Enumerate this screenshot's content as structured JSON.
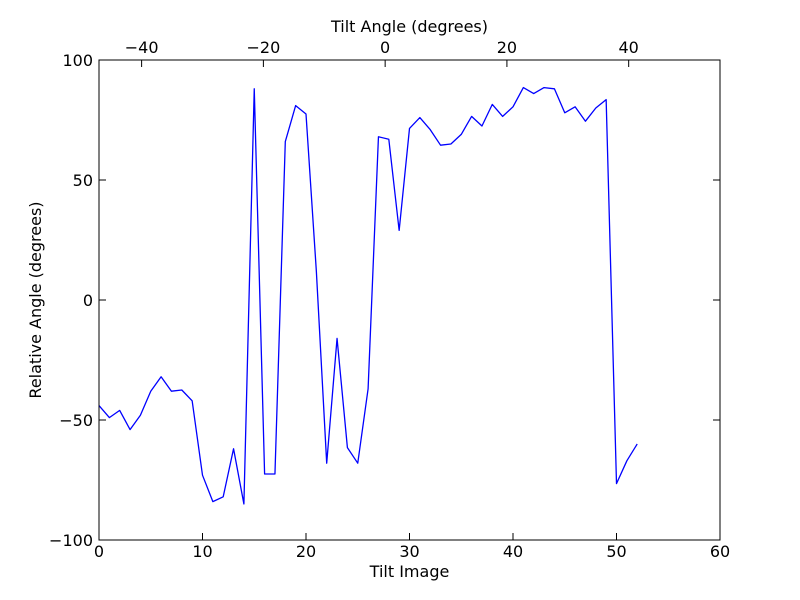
{
  "chart_data": {
    "type": "line",
    "title": "",
    "xlabel": "Tilt Image",
    "ylabel": "Relative Angle (degrees)",
    "top_xlabel": "Tilt Angle (degrees)",
    "xlim": [
      0,
      60
    ],
    "ylim": [
      -100,
      100
    ],
    "top_xlim": [
      -47,
      55
    ],
    "x_ticks": [
      0,
      10,
      20,
      30,
      40,
      50,
      60
    ],
    "y_ticks": [
      -100,
      -50,
      0,
      50,
      100
    ],
    "top_ticks": [
      -40,
      -20,
      0,
      20,
      40
    ],
    "x_tick_labels": [
      "0",
      "10",
      "20",
      "30",
      "40",
      "50",
      "60"
    ],
    "y_tick_labels": [
      "−100",
      "−50",
      "0",
      "50",
      "100"
    ],
    "top_tick_labels": [
      "−40",
      "−20",
      "0",
      "20",
      "40"
    ],
    "grid": false,
    "line_color": "#0000ff",
    "series": [
      {
        "x": [
          0,
          1,
          2,
          3,
          4,
          5,
          6,
          7,
          8,
          9,
          10,
          11,
          12,
          13,
          14,
          15,
          16,
          17,
          18,
          19,
          20,
          21,
          22,
          23,
          24,
          25,
          26,
          27,
          28,
          29,
          30,
          31,
          32,
          33,
          34,
          35,
          36,
          37,
          38,
          39,
          40,
          41,
          42,
          43,
          44,
          45,
          46,
          47,
          48,
          49,
          50,
          51,
          52
        ],
        "values": [
          -44,
          -49,
          -46,
          -54,
          -48,
          -38,
          -32,
          -38,
          -37.5,
          -42,
          -73,
          -84,
          -82,
          -62,
          -85,
          88,
          -72.5,
          -72.5,
          66,
          81,
          77.5,
          12,
          -68,
          -16,
          -61.5,
          -68,
          -37,
          68,
          67,
          29,
          71.5,
          76,
          71,
          64.5,
          65,
          69,
          76.5,
          72.5,
          81.5,
          76.5,
          80.5,
          88.5,
          86,
          88.5,
          88,
          78,
          80.5,
          74.5,
          80,
          83.5,
          -76.5,
          -67,
          -60
        ]
      }
    ]
  }
}
